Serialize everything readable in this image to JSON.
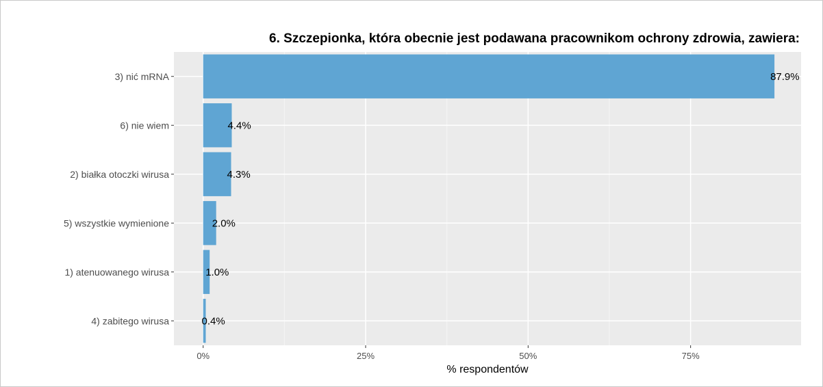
{
  "chart_data": {
    "type": "bar",
    "orientation": "horizontal",
    "title": "6. Szczepionka, która obecnie jest podawana pracownikom ochrony zdrowia, zawiera:",
    "xlabel": "% respondentów",
    "ylabel": "",
    "categories": [
      "3) nić mRNA",
      "6) nie wiem",
      "2) białka otoczki wirusa",
      "5) wszystkie wymienione",
      "1) atenuowanego wirusa",
      "4) zabitego wirusa"
    ],
    "values": [
      87.9,
      4.4,
      4.3,
      2.0,
      1.0,
      0.4
    ],
    "value_labels": [
      "87.9%",
      "4.4%",
      "4.3%",
      "2.0%",
      "1.0%",
      "0.4%"
    ],
    "xlim": [
      -4.5,
      92
    ],
    "x_ticks": [
      0,
      25,
      50,
      75
    ],
    "x_tick_labels": [
      "0%",
      "25%",
      "50%",
      "75%"
    ],
    "grid": true,
    "legend": "none",
    "colors": {
      "bar": "#5fa5d3",
      "panel": "#ebebeb",
      "grid_major": "#ffffff",
      "grid_minor": "#f5f5f5"
    }
  }
}
